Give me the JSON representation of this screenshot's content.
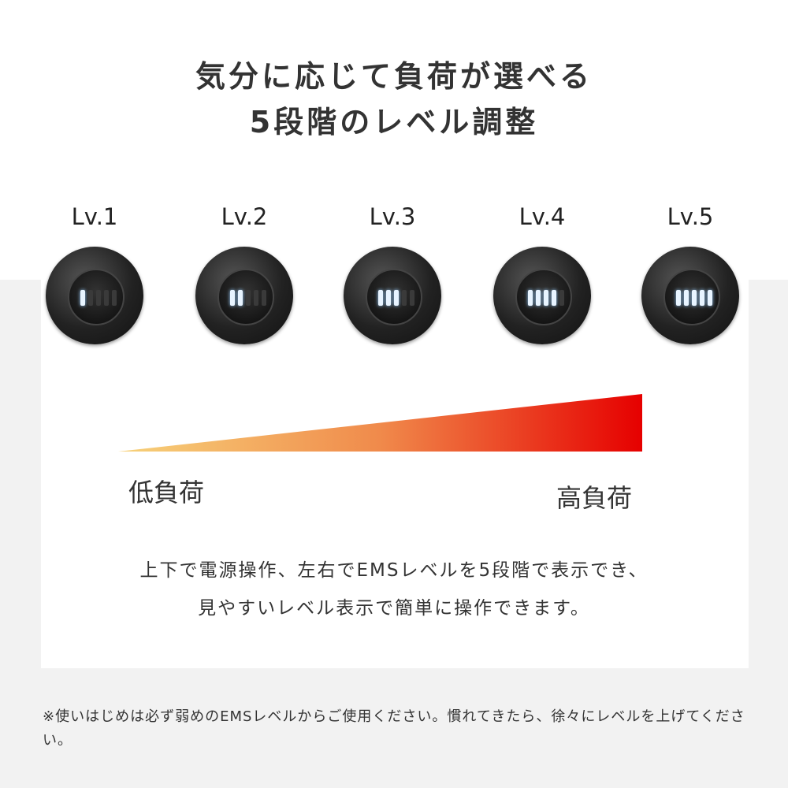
{
  "title": {
    "line1": "気分に応じて負荷が選べる",
    "line2": "5段階のレベル調整"
  },
  "levels": [
    {
      "label": "Lv.1",
      "lit_bars": 1
    },
    {
      "label": "Lv.2",
      "lit_bars": 2
    },
    {
      "label": "Lv.3",
      "lit_bars": 3
    },
    {
      "label": "Lv.4",
      "lit_bars": 4
    },
    {
      "label": "Lv.5",
      "lit_bars": 5
    }
  ],
  "load_scale": {
    "low_label": "低負荷",
    "high_label": "高負荷",
    "gradient_colors": [
      "#f7d27a",
      "#f08a4b",
      "#e60000"
    ]
  },
  "description": {
    "line1": "上下で電源操作、左右でEMSレベルを5段階で表示でき、",
    "line2": "見やすいレベル表示で簡単に操作できます。"
  },
  "note": "※使いはじめは必ず弱めのEMSレベルからご使用ください。慣れてきたら、徐々にレベルを上げてください。"
}
